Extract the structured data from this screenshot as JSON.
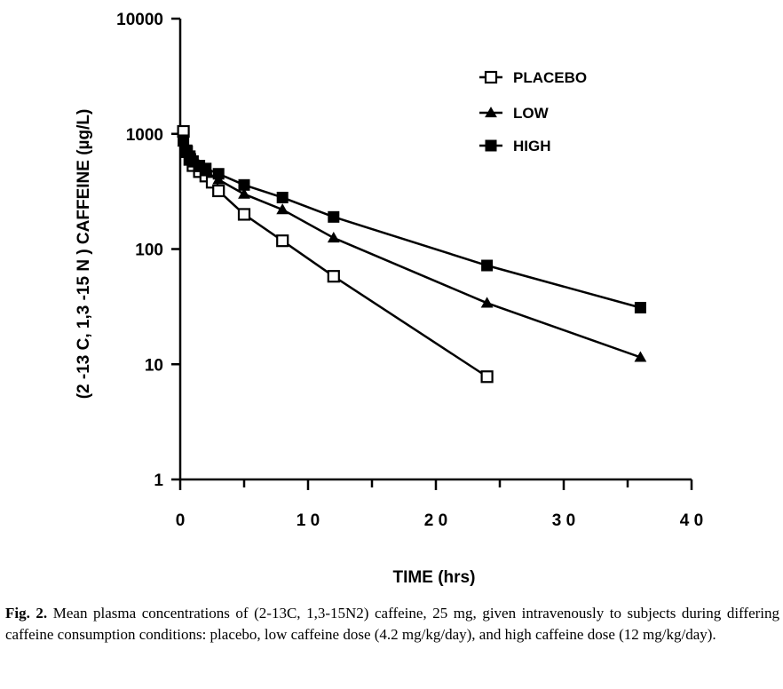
{
  "chart_data": {
    "type": "line",
    "yscale": "log",
    "xlim": [
      0,
      40
    ],
    "ylim": [
      1,
      10000
    ],
    "xlabel": "TIME (hrs)",
    "ylabel": "(2 -13 C, 1,3 -15 N    ) CAFFEINE (µg/L)",
    "x_ticks": [
      0,
      10,
      20,
      30,
      40
    ],
    "x_tick_labels": [
      "0",
      "1 0",
      "2 0",
      "3 0",
      "4 0"
    ],
    "y_ticks": [
      1,
      10,
      100,
      1000,
      10000
    ],
    "y_tick_labels": [
      "1",
      "10",
      "100",
      "1000",
      "10000"
    ],
    "legend_position": "top-right",
    "grid": false,
    "series": [
      {
        "name": "PLACEBO",
        "marker": "open-square",
        "points": [
          [
            0.25,
            1050
          ],
          [
            0.5,
            700
          ],
          [
            0.75,
            600
          ],
          [
            1,
            530
          ],
          [
            1.5,
            470
          ],
          [
            2,
            430
          ],
          [
            2.5,
            380
          ],
          [
            3,
            320
          ],
          [
            5,
            200
          ],
          [
            8,
            118
          ],
          [
            12,
            58
          ],
          [
            24,
            7.8
          ]
        ]
      },
      {
        "name": "LOW",
        "marker": "filled-triangle",
        "points": [
          [
            0.25,
            850
          ],
          [
            0.5,
            700
          ],
          [
            0.75,
            600
          ],
          [
            1,
            560
          ],
          [
            1.5,
            510
          ],
          [
            2,
            470
          ],
          [
            3,
            400
          ],
          [
            5,
            300
          ],
          [
            8,
            220
          ],
          [
            12,
            125
          ],
          [
            24,
            34
          ],
          [
            36,
            11.5
          ]
        ]
      },
      {
        "name": "HIGH",
        "marker": "filled-square",
        "points": [
          [
            0.25,
            880
          ],
          [
            0.5,
            720
          ],
          [
            0.75,
            640
          ],
          [
            1,
            580
          ],
          [
            1.5,
            530
          ],
          [
            2,
            500
          ],
          [
            3,
            450
          ],
          [
            5,
            360
          ],
          [
            8,
            280
          ],
          [
            12,
            190
          ],
          [
            24,
            72
          ],
          [
            36,
            31
          ]
        ]
      }
    ]
  },
  "caption": {
    "label": "Fig. 2.",
    "text": " Mean plasma concentrations of (2-13C, 1,3-15N2) caffeine, 25 mg, given intravenously to subjects during differing caffeine consumption conditions: placebo, low caffeine dose (4.2 mg/kg/day), and high caffeine dose (12 mg/kg/day)."
  }
}
